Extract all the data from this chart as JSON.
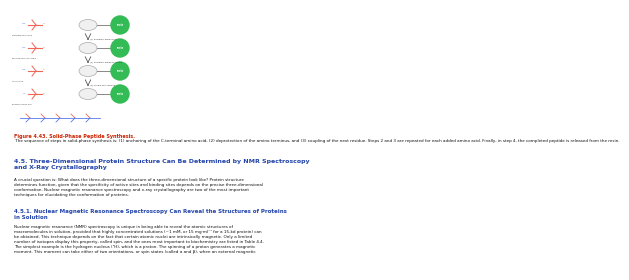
{
  "fig_caption_bold": "Figure 4.43. Solid-Phase Peptide Synthesis.",
  "fig_caption_normal": " The sequence of steps in solid-phase synthesis is: (1) anchoring of the C-terminal amino acid, (2) deprotection of the amino terminus, and (3) coupling of the next residue. Steps 2 and 3 are repeated for each added amino acid. Finally, in step 4, the completed peptide is released from the resin.",
  "section_title": "4.5. Three-Dimensional Protein Structure Can Be Determined by NMR Spectroscopy\nand X-Ray Crystallography",
  "body_text_1": "A crucial question is: What does the three-dimensional structure of a specific protein look like? Protein structure\ndetermines function, given that the specificity of active sites and binding sites depends on the precise three-dimensional\nconformation. Nuclear magnetic resonance spectroscopy and x-ray crystallography are two of the most important\ntechniques for elucidating the conformation of proteins.",
  "subsection_title": "4.5.1. Nuclear Magnetic Resonance Spectroscopy Can Reveal the Structures of Proteins\nin Solution",
  "body_text_2": "Nuclear magnetic resonance (NMR) spectroscopy is unique in being able to reveal the atomic structures of\nmacromolecules in solution, provided that highly concentrated solutions (~1 mM, or 15 mg·ml⁻¹ for a 15-kd protein) can\nbe obtained. This technique depends on the fact that certain atomic nuclei are intrinsically magnetic. Only a limited\nnumber of isotopes display this property, called spin, and the ones most important to biochemistry are listed in Table 4.4.\nThe simplest example is the hydrogen nucleus (¹H), which is a proton. The spinning of a proton generates a magnetic\nmoment. This moment can take either of two orientations, or spin states (called α and β), when an external magnetic",
  "background_color": "#ffffff",
  "text_color": "#111111",
  "section_color": "#2244aa",
  "caption_bold_color": "#cc2200",
  "resin_color": "#33bb55",
  "mol_red": "#ee6655",
  "mol_blue": "#5577ee"
}
